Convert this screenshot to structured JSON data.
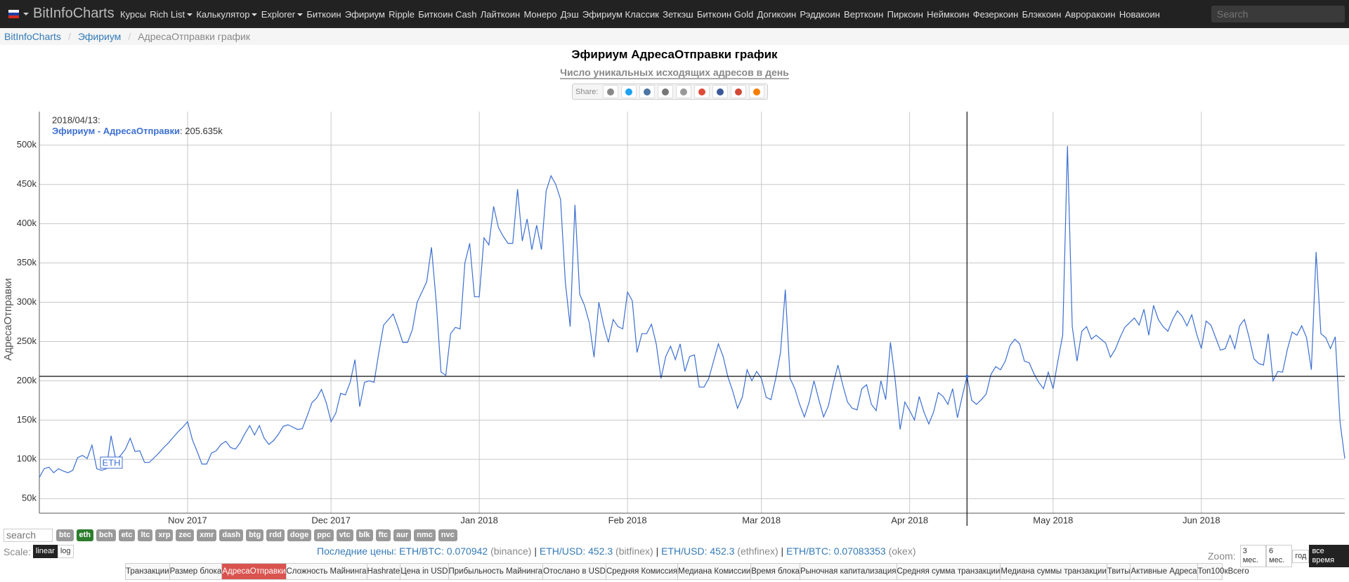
{
  "nav": {
    "brand": "BitInfoCharts",
    "search_placeholder": "Search",
    "items": [
      {
        "label": "Курсы",
        "dropdown": false
      },
      {
        "label": "Rich List",
        "dropdown": true
      },
      {
        "label": "Калькулятор",
        "dropdown": true
      },
      {
        "label": "Explorer",
        "dropdown": true
      },
      {
        "label": "Биткоин",
        "dropdown": false
      },
      {
        "label": "Эфириум",
        "dropdown": false
      },
      {
        "label": "Ripple",
        "dropdown": false
      },
      {
        "label": "Биткоин Cash",
        "dropdown": false
      },
      {
        "label": "Лайткоин",
        "dropdown": false
      },
      {
        "label": "Монеро",
        "dropdown": false
      },
      {
        "label": "Дэш",
        "dropdown": false
      },
      {
        "label": "Эфириум Классик",
        "dropdown": false
      },
      {
        "label": "Зеткэш",
        "dropdown": false
      },
      {
        "label": "Биткоин Gold",
        "dropdown": false
      },
      {
        "label": "Догикоин",
        "dropdown": false
      },
      {
        "label": "Рэддкоин",
        "dropdown": false
      },
      {
        "label": "Верткоин",
        "dropdown": false
      },
      {
        "label": "Пиркоин",
        "dropdown": false
      },
      {
        "label": "Неймкоин",
        "dropdown": false
      },
      {
        "label": "Фезеркоин",
        "dropdown": false
      },
      {
        "label": "Блэккоин",
        "dropdown": false
      },
      {
        "label": "Авроракоин",
        "dropdown": false
      },
      {
        "label": "Новакоин",
        "dropdown": false
      }
    ]
  },
  "breadcrumb": {
    "separator": "/",
    "items": [
      "BitInfoCharts",
      "Эфириум",
      "АдресаОтправки график"
    ]
  },
  "share_label": "Share:",
  "chart_data": {
    "type": "line",
    "title": "Эфириум АдресаОтправки график",
    "subtitle": "Число уникальных исходящих адресов в день",
    "y_label": "АдресаОтправки",
    "annotation": "ETH",
    "grid": true,
    "xlim": [
      "2017/10/01",
      "2018/07/01"
    ],
    "xticks": [
      {
        "value": "2017/11/01",
        "label": "Nov 2017"
      },
      {
        "value": "2017/12/01",
        "label": "Dec 2017"
      },
      {
        "value": "2018/01/01",
        "label": "Jan 2018"
      },
      {
        "value": "2018/02/01",
        "label": "Feb 2018"
      },
      {
        "value": "2018/03/01",
        "label": "Mar 2018"
      },
      {
        "value": "2018/04/01",
        "label": "Apr 2018"
      },
      {
        "value": "2018/05/01",
        "label": "May 2018"
      },
      {
        "value": "2018/06/01",
        "label": "Jun 2018"
      }
    ],
    "ylim": [
      31400,
      542700
    ],
    "yticks": [
      {
        "value": 50000,
        "label": "50k"
      },
      {
        "value": 100000,
        "label": "100k"
      },
      {
        "value": 150000,
        "label": "150k"
      },
      {
        "value": 200000,
        "label": "200k"
      },
      {
        "value": 250000,
        "label": "250k"
      },
      {
        "value": 300000,
        "label": "300k"
      },
      {
        "value": 350000,
        "label": "350k"
      },
      {
        "value": 400000,
        "label": "400k"
      },
      {
        "value": 450000,
        "label": "450k"
      },
      {
        "value": 500000,
        "label": "500k"
      }
    ],
    "x": [
      "2017/10/01",
      "2017/10/02",
      "2017/10/03",
      "2017/10/04",
      "2017/10/05",
      "2017/10/06",
      "2017/10/07",
      "2017/10/08",
      "2017/10/09",
      "2017/10/10",
      "2017/10/11",
      "2017/10/12",
      "2017/10/13",
      "2017/10/14",
      "2017/10/15",
      "2017/10/16",
      "2017/10/17",
      "2017/10/18",
      "2017/10/19",
      "2017/10/20",
      "2017/10/21",
      "2017/10/22",
      "2017/10/23",
      "2017/10/24",
      "2017/10/25",
      "2017/10/26",
      "2017/10/27",
      "2017/10/28",
      "2017/10/29",
      "2017/10/30",
      "2017/10/31",
      "2017/11/01",
      "2017/11/02",
      "2017/11/03",
      "2017/11/04",
      "2017/11/05",
      "2017/11/06",
      "2017/11/07",
      "2017/11/08",
      "2017/11/09",
      "2017/11/10",
      "2017/11/11",
      "2017/11/12",
      "2017/11/13",
      "2017/11/14",
      "2017/11/15",
      "2017/11/16",
      "2017/11/17",
      "2017/11/18",
      "2017/11/19",
      "2017/11/20",
      "2017/11/21",
      "2017/11/22",
      "2017/11/23",
      "2017/11/24",
      "2017/11/25",
      "2017/11/26",
      "2017/11/27",
      "2017/11/28",
      "2017/11/29",
      "2017/11/30",
      "2017/12/01",
      "2017/12/02",
      "2017/12/03",
      "2017/12/04",
      "2017/12/05",
      "2017/12/06",
      "2017/12/07",
      "2017/12/08",
      "2017/12/09",
      "2017/12/10",
      "2017/12/11",
      "2017/12/12",
      "2017/12/13",
      "2017/12/14",
      "2017/12/15",
      "2017/12/16",
      "2017/12/17",
      "2017/12/18",
      "2017/12/19",
      "2017/12/20",
      "2017/12/21",
      "2017/12/22",
      "2017/12/23",
      "2017/12/24",
      "2017/12/25",
      "2017/12/26",
      "2017/12/27",
      "2017/12/28",
      "2017/12/29",
      "2017/12/30",
      "2017/12/31",
      "2018/01/01",
      "2018/01/02",
      "2018/01/03",
      "2018/01/04",
      "2018/01/05",
      "2018/01/06",
      "2018/01/07",
      "2018/01/08",
      "2018/01/09",
      "2018/01/10",
      "2018/01/11",
      "2018/01/12",
      "2018/01/13",
      "2018/01/14",
      "2018/01/15",
      "2018/01/16",
      "2018/01/17",
      "2018/01/18",
      "2018/01/19",
      "2018/01/20",
      "2018/01/21",
      "2018/01/22",
      "2018/01/23",
      "2018/01/24",
      "2018/01/25",
      "2018/01/26",
      "2018/01/27",
      "2018/01/28",
      "2018/01/29",
      "2018/01/30",
      "2018/01/31",
      "2018/02/01",
      "2018/02/02",
      "2018/02/03",
      "2018/02/04",
      "2018/02/05",
      "2018/02/06",
      "2018/02/07",
      "2018/02/08",
      "2018/02/09",
      "2018/02/10",
      "2018/02/11",
      "2018/02/12",
      "2018/02/13",
      "2018/02/14",
      "2018/02/15",
      "2018/02/16",
      "2018/02/17",
      "2018/02/18",
      "2018/02/19",
      "2018/02/20",
      "2018/02/21",
      "2018/02/22",
      "2018/02/23",
      "2018/02/24",
      "2018/02/25",
      "2018/02/26",
      "2018/02/27",
      "2018/02/28",
      "2018/03/01",
      "2018/03/02",
      "2018/03/03",
      "2018/03/04",
      "2018/03/05",
      "2018/03/06",
      "2018/03/07",
      "2018/03/08",
      "2018/03/09",
      "2018/03/10",
      "2018/03/11",
      "2018/03/12",
      "2018/03/13",
      "2018/03/14",
      "2018/03/15",
      "2018/03/16",
      "2018/03/17",
      "2018/03/18",
      "2018/03/19",
      "2018/03/20",
      "2018/03/21",
      "2018/03/22",
      "2018/03/23",
      "2018/03/24",
      "2018/03/25",
      "2018/03/26",
      "2018/03/27",
      "2018/03/28",
      "2018/03/29",
      "2018/03/30",
      "2018/03/31",
      "2018/04/01",
      "2018/04/02",
      "2018/04/03",
      "2018/04/04",
      "2018/04/05",
      "2018/04/06",
      "2018/04/07",
      "2018/04/08",
      "2018/04/09",
      "2018/04/10",
      "2018/04/11",
      "2018/04/12",
      "2018/04/13",
      "2018/04/14",
      "2018/04/15",
      "2018/04/16",
      "2018/04/17",
      "2018/04/18",
      "2018/04/19",
      "2018/04/20",
      "2018/04/21",
      "2018/04/22",
      "2018/04/23",
      "2018/04/24",
      "2018/04/25",
      "2018/04/26",
      "2018/04/27",
      "2018/04/28",
      "2018/04/29",
      "2018/04/30",
      "2018/05/01",
      "2018/05/02",
      "2018/05/03",
      "2018/05/04",
      "2018/05/05",
      "2018/05/06",
      "2018/05/07",
      "2018/05/08",
      "2018/05/09",
      "2018/05/10",
      "2018/05/11",
      "2018/05/12",
      "2018/05/13",
      "2018/05/14",
      "2018/05/15",
      "2018/05/16",
      "2018/05/17",
      "2018/05/18",
      "2018/05/19",
      "2018/05/20",
      "2018/05/21",
      "2018/05/22",
      "2018/05/23",
      "2018/05/24",
      "2018/05/25",
      "2018/05/26",
      "2018/05/27",
      "2018/05/28",
      "2018/05/29",
      "2018/05/30",
      "2018/05/31",
      "2018/06/01",
      "2018/06/02",
      "2018/06/03",
      "2018/06/04",
      "2018/06/05",
      "2018/06/06",
      "2018/06/07",
      "2018/06/08",
      "2018/06/09",
      "2018/06/10",
      "2018/06/11",
      "2018/06/12",
      "2018/06/13",
      "2018/06/14",
      "2018/06/15",
      "2018/06/16",
      "2018/06/17",
      "2018/06/18",
      "2018/06/19",
      "2018/06/20",
      "2018/06/21",
      "2018/06/22",
      "2018/06/23",
      "2018/06/24",
      "2018/06/25",
      "2018/06/26",
      "2018/06/27",
      "2018/06/28",
      "2018/06/29",
      "2018/06/30",
      "2018/07/01"
    ],
    "series": [
      {
        "name": "Эфириум - АдресаОтправки",
        "color": "#3c6fd0",
        "values": [
          77000,
          88000,
          90000,
          83000,
          88000,
          85000,
          83000,
          86000,
          102000,
          105000,
          101000,
          118000,
          88000,
          86000,
          88000,
          130000,
          99000,
          105000,
          113000,
          127000,
          110000,
          111000,
          96000,
          96000,
          102000,
          108000,
          115000,
          121000,
          128000,
          135000,
          141000,
          148000,
          125000,
          110000,
          94000,
          94000,
          108000,
          111000,
          119000,
          123000,
          115000,
          113000,
          121000,
          133000,
          143000,
          131000,
          143000,
          127000,
          119000,
          124000,
          132000,
          142000,
          144000,
          141000,
          138000,
          139000,
          155000,
          172000,
          178000,
          189000,
          172000,
          148000,
          159000,
          184000,
          182000,
          198000,
          227000,
          167000,
          198000,
          200000,
          198000,
          236000,
          271000,
          278000,
          285000,
          268000,
          249000,
          249000,
          265000,
          300000,
          313000,
          326000,
          370000,
          300000,
          211000,
          207000,
          260000,
          268000,
          266000,
          350000,
          375000,
          307000,
          307000,
          382000,
          373000,
          422000,
          395000,
          384000,
          375000,
          375000,
          444000,
          378000,
          406000,
          367000,
          398000,
          367000,
          442000,
          461000,
          450000,
          431000,
          326000,
          269000,
          424000,
          310000,
          296000,
          274000,
          230000,
          300000,
          271000,
          249000,
          278000,
          269000,
          266000,
          313000,
          302000,
          236000,
          260000,
          260000,
          272000,
          247000,
          203000,
          231000,
          244000,
          227000,
          247000,
          212000,
          231000,
          233000,
          192000,
          192000,
          203000,
          225000,
          247000,
          231000,
          205000,
          187000,
          165000,
          179000,
          214000,
          200000,
          212000,
          203000,
          179000,
          176000,
          203000,
          236000,
          316000,
          203000,
          190000,
          170000,
          154000,
          173000,
          200000,
          176000,
          154000,
          168000,
          196000,
          220000,
          195000,
          173000,
          165000,
          163000,
          190000,
          195000,
          170000,
          162000,
          200000,
          176000,
          249000,
          200000,
          138000,
          173000,
          162000,
          150000,
          180000,
          160000,
          145000,
          160000,
          185000,
          180000,
          170000,
          190000,
          153000,
          180000,
          205635,
          175000,
          170000,
          176000,
          183000,
          208000,
          218000,
          214000,
          225000,
          245000,
          253000,
          247000,
          225000,
          223000,
          209000,
          198000,
          190000,
          211000,
          190000,
          225000,
          258000,
          499000,
          269000,
          225000,
          263000,
          269000,
          253000,
          258000,
          253000,
          248000,
          230000,
          240000,
          255000,
          268000,
          274000,
          280000,
          271000,
          291000,
          258000,
          296000,
          278000,
          269000,
          263000,
          278000,
          289000,
          282000,
          270000,
          284000,
          260000,
          241000,
          276000,
          271000,
          255000,
          239000,
          241000,
          258000,
          241000,
          270000,
          278000,
          255000,
          228000,
          222000,
          220000,
          260000,
          200000,
          212000,
          211000,
          240000,
          262000,
          258000,
          270000,
          255000,
          214000,
          364000,
          260000,
          255000,
          241000,
          256000,
          148000,
          101000
        ]
      }
    ],
    "tooltip": {
      "index": 194,
      "date_label": "2018/04/13:",
      "value_text": ": 205.635k"
    }
  },
  "controls": {
    "search_placeholder": "search",
    "coins": [
      {
        "label": "btc",
        "active": false
      },
      {
        "label": "eth",
        "active": true
      },
      {
        "label": "bch",
        "active": false
      },
      {
        "label": "etc",
        "active": false
      },
      {
        "label": "ltc",
        "active": false
      },
      {
        "label": "xrp",
        "active": false
      },
      {
        "label": "zec",
        "active": false
      },
      {
        "label": "xmr",
        "active": false
      },
      {
        "label": "dash",
        "active": false
      },
      {
        "label": "btg",
        "active": false
      },
      {
        "label": "rdd",
        "active": false
      },
      {
        "label": "doge",
        "active": false
      },
      {
        "label": "ppc",
        "active": false
      },
      {
        "label": "vtc",
        "active": false
      },
      {
        "label": "blk",
        "active": false
      },
      {
        "label": "ftc",
        "active": false
      },
      {
        "label": "aur",
        "active": false
      },
      {
        "label": "nmc",
        "active": false
      },
      {
        "label": "nvc",
        "active": false
      }
    ],
    "scale_label": "Scale:",
    "scales": [
      {
        "label": "linear",
        "active": true
      },
      {
        "label": "log",
        "active": false
      }
    ],
    "prices_label": "Последние цены:",
    "price_separator": "|",
    "prices": [
      {
        "pair": "ETH/BTC: 0.070942",
        "exchange": "(binance)"
      },
      {
        "pair": "ETH/USD: 452.3",
        "exchange": "(bitfinex)"
      },
      {
        "pair": "ETH/USD: 452.3",
        "exchange": "(ethfinex)"
      },
      {
        "pair": "ETH/BTC: 0.07083353",
        "exchange": "(okex)"
      }
    ],
    "zoom_label": "Zoom:",
    "zooms": [
      {
        "label": "3 мес.",
        "active": false
      },
      {
        "label": "6 мес.",
        "active": false
      },
      {
        "label": "год",
        "active": false
      },
      {
        "label": "все время",
        "active": true
      }
    ]
  },
  "tabs": [
    {
      "label": "Транзакции",
      "active": false
    },
    {
      "label": "Размер блока",
      "active": false
    },
    {
      "label": "АдресаОтправки",
      "active": true
    },
    {
      "label": "Сложность Майнинга",
      "active": false
    },
    {
      "label": "Hashrate",
      "active": false
    },
    {
      "label": "Цена in USD",
      "active": false
    },
    {
      "label": "Прибыльность Майнинга",
      "active": false
    },
    {
      "label": "Отослано в USD",
      "active": false
    },
    {
      "label": "Средняя Комиссия",
      "active": false
    },
    {
      "label": "Медиана Комиссии",
      "active": false
    },
    {
      "label": "Время блока",
      "active": false
    },
    {
      "label": "Рыночная капитализация",
      "active": false
    },
    {
      "label": "Средняя сумма транзакции",
      "active": false
    },
    {
      "label": "Медиана суммы транзакции",
      "active": false
    },
    {
      "label": "Твиты",
      "active": false
    },
    {
      "label": "Активные Адреса",
      "active": false
    },
    {
      "label": "Топ100кВсего",
      "active": false
    }
  ]
}
